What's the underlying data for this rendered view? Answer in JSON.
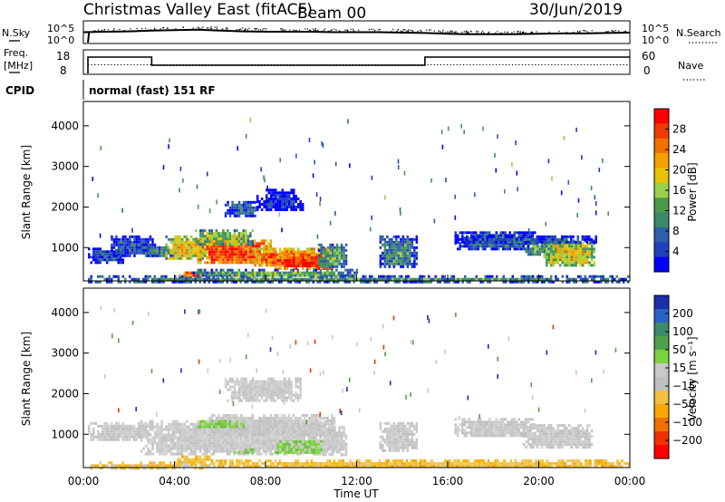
{
  "header": {
    "title": "Christmas Valley East (fitACF)",
    "beam": "Beam 00",
    "date": "30/Jun/2019"
  },
  "nsky_panel": {
    "left_label": "N.Sky",
    "right_label": "N.Search",
    "left_ticks": [
      "10^5",
      "10^0"
    ],
    "right_ticks": [
      "10^5",
      "10^0"
    ]
  },
  "freq_panel": {
    "left_label_line1": "Freq.",
    "left_label_line2": "[MHz]",
    "right_label": "Nave",
    "left_ticks": [
      "18",
      "8"
    ],
    "right_ticks": [
      "60",
      "0"
    ]
  },
  "cpid": {
    "label": "CPID",
    "value": "normal (fast) 151 RF"
  },
  "chart_data": [
    {
      "type": "line",
      "name_shown": "N.Sky / N.Search",
      "x_unit": "hours UT",
      "x": [
        0,
        1,
        2,
        3,
        4,
        5,
        6,
        7,
        8,
        9,
        10,
        11,
        12,
        13,
        14,
        15,
        16,
        17,
        18,
        19,
        20,
        21,
        22,
        23,
        24
      ],
      "series": [
        {
          "values": [
            2.5,
            2.6,
            2.7,
            2.9,
            3.0,
            3.1,
            2.9,
            2.7,
            2.6,
            2.6,
            2.6,
            2.5,
            2.5,
            2.5,
            2.4,
            2.3,
            2.1,
            2.0,
            2.0,
            2.0,
            2.1,
            2.2,
            2.2,
            2.3,
            2.4
          ]
        }
      ],
      "ylim": [
        0,
        5
      ]
    },
    {
      "type": "line",
      "name_shown": "Freq. / Nave",
      "x_unit": "hours UT",
      "steps": [
        {
          "x0": 0.0,
          "x1": 3.0,
          "freq_mhz": 15.2
        },
        {
          "x0": 3.0,
          "x1": 15.0,
          "freq_mhz": 11.6
        },
        {
          "x0": 15.0,
          "x1": 24.0,
          "freq_mhz": 15.2
        }
      ],
      "nave": 23,
      "ylim": [
        8,
        18
      ]
    },
    {
      "type": "heatmap",
      "name_shown": "Power",
      "xlabel": "",
      "ylabel": "Slant Range [km]",
      "xlim": [
        0,
        24
      ],
      "ylim": [
        180,
        4600
      ],
      "yticks": [
        1000,
        2000,
        3000,
        4000
      ],
      "colorbar": {
        "label": "Power [dB]",
        "ticks": [
          4,
          8,
          12,
          16,
          20,
          24,
          28
        ],
        "colors": [
          "#0000ff",
          "#1f3fbf",
          "#2e5fa8",
          "#3a8a6a",
          "#4a9a4e",
          "#9ad04a",
          "#e6c400",
          "#f5a000",
          "#f07000",
          "#f03a00",
          "#ff0000"
        ]
      },
      "regions": [
        {
          "x0": 0.2,
          "x1": 24.0,
          "r0": 180,
          "r1": 320,
          "level": 0.35
        },
        {
          "x0": 0.2,
          "x1": 1.7,
          "r0": 650,
          "r1": 1000,
          "level": 0.18
        },
        {
          "x0": 1.2,
          "x1": 3.0,
          "r0": 800,
          "r1": 1300,
          "level": 0.2
        },
        {
          "x0": 2.4,
          "x1": 3.9,
          "r0": 800,
          "r1": 1100,
          "level": 0.28
        },
        {
          "x0": 3.6,
          "x1": 5.6,
          "r0": 700,
          "r1": 1300,
          "level": 0.6
        },
        {
          "x0": 5.0,
          "x1": 8.2,
          "r0": 600,
          "r1": 1200,
          "level": 0.85
        },
        {
          "x0": 4.9,
          "x1": 7.4,
          "r0": 1050,
          "r1": 1450,
          "level": 0.5
        },
        {
          "x0": 7.4,
          "x1": 10.6,
          "r0": 550,
          "r1": 1000,
          "level": 0.8
        },
        {
          "x0": 8.4,
          "x1": 10.9,
          "r0": 500,
          "r1": 850,
          "level": 0.92
        },
        {
          "x0": 10.3,
          "x1": 11.5,
          "r0": 500,
          "r1": 1100,
          "level": 0.4
        },
        {
          "x0": 6.2,
          "x1": 7.6,
          "r0": 1800,
          "r1": 2150,
          "level": 0.22
        },
        {
          "x0": 7.6,
          "x1": 9.6,
          "r0": 1950,
          "r1": 2300,
          "level": 0.1
        },
        {
          "x0": 8.0,
          "x1": 9.2,
          "r0": 2280,
          "r1": 2450,
          "level": 0.06
        },
        {
          "x0": 4.2,
          "x1": 5.3,
          "r0": 300,
          "r1": 480,
          "level": 0.82
        },
        {
          "x0": 4.8,
          "x1": 12.0,
          "r0": 300,
          "r1": 480,
          "level": 0.4
        },
        {
          "x0": 13.0,
          "x1": 14.6,
          "r0": 500,
          "r1": 1300,
          "level": 0.3
        },
        {
          "x0": 16.3,
          "x1": 19.8,
          "r0": 950,
          "r1": 1400,
          "level": 0.25
        },
        {
          "x0": 19.3,
          "x1": 21.2,
          "r0": 800,
          "r1": 1200,
          "level": 0.35
        },
        {
          "x0": 20.2,
          "x1": 22.4,
          "r0": 550,
          "r1": 1200,
          "level": 0.6
        },
        {
          "x0": 16.3,
          "x1": 22.5,
          "r0": 1100,
          "r1": 1300,
          "level": 0.2
        }
      ]
    },
    {
      "type": "heatmap",
      "name_shown": "Velocity",
      "xlabel": "Time UT",
      "ylabel": "Slant Range [km]",
      "xlim": [
        0,
        24
      ],
      "ylim": [
        180,
        4600
      ],
      "yticks": [
        1000,
        2000,
        3000,
        4000
      ],
      "xticks": [
        "00:00",
        "04:00",
        "08:00",
        "12:00",
        "16:00",
        "20:00",
        "00:00"
      ],
      "colorbar": {
        "label": "Velocity [m s⁻¹]",
        "ticks": [
          "200",
          "100",
          "50",
          "15",
          "−15",
          "−50",
          "−100",
          "−200"
        ],
        "colors": [
          "#1a2fa8",
          "#2b62c8",
          "#3b8a6a",
          "#4fa04a",
          "#7bd23e",
          "#c8c8c8",
          "#c0c0c0",
          "#f0c040",
          "#f8a800",
          "#f07000",
          "#f03000",
          "#ff0000"
        ]
      },
      "regions": [
        {
          "x0": 0.2,
          "x1": 3.0,
          "r0": 850,
          "r1": 1300,
          "kind": "grey"
        },
        {
          "x0": 2.5,
          "x1": 11.0,
          "r0": 520,
          "r1": 1350,
          "kind": "grey"
        },
        {
          "x0": 5.5,
          "x1": 11.0,
          "r0": 1000,
          "r1": 1500,
          "kind": "grey"
        },
        {
          "x0": 5.0,
          "x1": 7.0,
          "r0": 1150,
          "r1": 1350,
          "kind": "green"
        },
        {
          "x0": 8.4,
          "x1": 10.6,
          "r0": 520,
          "r1": 850,
          "kind": "green"
        },
        {
          "x0": 6.6,
          "x1": 7.4,
          "r0": 520,
          "r1": 650,
          "kind": "green"
        },
        {
          "x0": 10.4,
          "x1": 11.5,
          "r0": 520,
          "r1": 1200,
          "kind": "grey"
        },
        {
          "x0": 13.0,
          "x1": 14.6,
          "r0": 600,
          "r1": 1300,
          "kind": "grey"
        },
        {
          "x0": 16.3,
          "x1": 19.8,
          "r0": 950,
          "r1": 1400,
          "kind": "grey"
        },
        {
          "x0": 19.3,
          "x1": 22.3,
          "r0": 650,
          "r1": 1250,
          "kind": "grey"
        },
        {
          "x0": 6.2,
          "x1": 9.5,
          "r0": 1850,
          "r1": 2400,
          "kind": "grey"
        },
        {
          "x0": 4.0,
          "x1": 5.5,
          "r0": 250,
          "r1": 480,
          "kind": "orange"
        },
        {
          "x0": 5.5,
          "x1": 24.0,
          "r0": 180,
          "r1": 380,
          "kind": "orange"
        },
        {
          "x0": 0.3,
          "x1": 5.5,
          "r0": 180,
          "r1": 330,
          "kind": "orange_sparse"
        }
      ]
    }
  ]
}
